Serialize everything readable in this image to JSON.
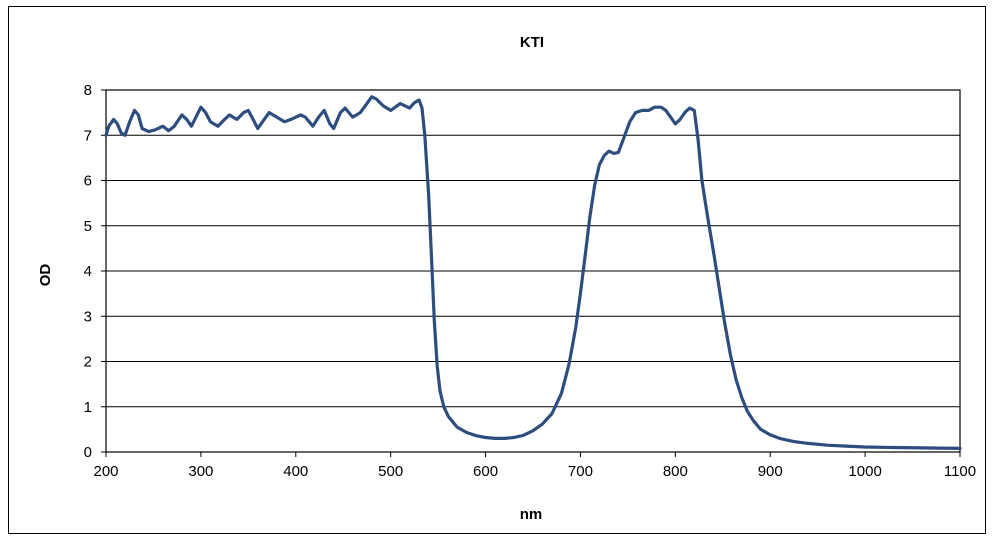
{
  "chart_data": {
    "type": "line",
    "title": "KTI",
    "xlabel": "nm",
    "ylabel": "OD",
    "xlim": [
      200,
      1100
    ],
    "ylim": [
      0,
      8
    ],
    "x_ticks": [
      200,
      300,
      400,
      500,
      600,
      700,
      800,
      900,
      1000,
      1100
    ],
    "y_ticks": [
      0,
      1,
      2,
      3,
      4,
      5,
      6,
      7,
      8
    ],
    "grid": "horizontal",
    "legend": "none",
    "series": [
      {
        "color": "#2e4d7f",
        "points": [
          [
            200,
            7.0
          ],
          [
            203,
            7.2
          ],
          [
            208,
            7.35
          ],
          [
            212,
            7.25
          ],
          [
            216,
            7.05
          ],
          [
            220,
            7.0
          ],
          [
            225,
            7.3
          ],
          [
            230,
            7.55
          ],
          [
            234,
            7.45
          ],
          [
            238,
            7.15
          ],
          [
            245,
            7.08
          ],
          [
            252,
            7.12
          ],
          [
            260,
            7.2
          ],
          [
            266,
            7.1
          ],
          [
            272,
            7.2
          ],
          [
            280,
            7.45
          ],
          [
            285,
            7.35
          ],
          [
            290,
            7.2
          ],
          [
            300,
            7.62
          ],
          [
            305,
            7.5
          ],
          [
            310,
            7.3
          ],
          [
            318,
            7.2
          ],
          [
            325,
            7.35
          ],
          [
            330,
            7.45
          ],
          [
            338,
            7.35
          ],
          [
            345,
            7.5
          ],
          [
            350,
            7.55
          ],
          [
            355,
            7.35
          ],
          [
            360,
            7.15
          ],
          [
            365,
            7.3
          ],
          [
            372,
            7.5
          ],
          [
            380,
            7.4
          ],
          [
            388,
            7.3
          ],
          [
            395,
            7.35
          ],
          [
            405,
            7.45
          ],
          [
            410,
            7.4
          ],
          [
            418,
            7.2
          ],
          [
            424,
            7.4
          ],
          [
            430,
            7.55
          ],
          [
            436,
            7.25
          ],
          [
            440,
            7.15
          ],
          [
            447,
            7.5
          ],
          [
            452,
            7.6
          ],
          [
            460,
            7.4
          ],
          [
            468,
            7.5
          ],
          [
            475,
            7.7
          ],
          [
            480,
            7.85
          ],
          [
            485,
            7.8
          ],
          [
            492,
            7.65
          ],
          [
            500,
            7.55
          ],
          [
            510,
            7.7
          ],
          [
            515,
            7.65
          ],
          [
            520,
            7.6
          ],
          [
            525,
            7.72
          ],
          [
            530,
            7.78
          ],
          [
            533,
            7.6
          ],
          [
            536,
            7.0
          ],
          [
            540,
            5.7
          ],
          [
            543,
            4.3
          ],
          [
            546,
            2.9
          ],
          [
            549,
            1.9
          ],
          [
            552,
            1.35
          ],
          [
            556,
            1.0
          ],
          [
            561,
            0.78
          ],
          [
            570,
            0.55
          ],
          [
            580,
            0.43
          ],
          [
            590,
            0.36
          ],
          [
            600,
            0.32
          ],
          [
            610,
            0.3
          ],
          [
            620,
            0.3
          ],
          [
            630,
            0.32
          ],
          [
            640,
            0.37
          ],
          [
            650,
            0.47
          ],
          [
            660,
            0.62
          ],
          [
            670,
            0.85
          ],
          [
            680,
            1.3
          ],
          [
            688,
            1.95
          ],
          [
            695,
            2.75
          ],
          [
            700,
            3.5
          ],
          [
            705,
            4.35
          ],
          [
            710,
            5.2
          ],
          [
            715,
            5.9
          ],
          [
            720,
            6.35
          ],
          [
            725,
            6.55
          ],
          [
            730,
            6.65
          ],
          [
            735,
            6.6
          ],
          [
            740,
            6.62
          ],
          [
            745,
            6.9
          ],
          [
            752,
            7.3
          ],
          [
            758,
            7.5
          ],
          [
            765,
            7.55
          ],
          [
            772,
            7.55
          ],
          [
            778,
            7.62
          ],
          [
            785,
            7.62
          ],
          [
            790,
            7.55
          ],
          [
            795,
            7.4
          ],
          [
            800,
            7.25
          ],
          [
            805,
            7.35
          ],
          [
            810,
            7.5
          ],
          [
            815,
            7.6
          ],
          [
            820,
            7.55
          ],
          [
            824,
            6.9
          ],
          [
            828,
            6.0
          ],
          [
            834,
            5.2
          ],
          [
            840,
            4.45
          ],
          [
            846,
            3.65
          ],
          [
            852,
            2.85
          ],
          [
            858,
            2.15
          ],
          [
            864,
            1.6
          ],
          [
            870,
            1.2
          ],
          [
            876,
            0.9
          ],
          [
            882,
            0.7
          ],
          [
            890,
            0.5
          ],
          [
            900,
            0.38
          ],
          [
            910,
            0.3
          ],
          [
            925,
            0.23
          ],
          [
            940,
            0.19
          ],
          [
            960,
            0.15
          ],
          [
            980,
            0.13
          ],
          [
            1000,
            0.11
          ],
          [
            1030,
            0.1
          ],
          [
            1060,
            0.09
          ],
          [
            1100,
            0.08
          ]
        ]
      }
    ]
  }
}
